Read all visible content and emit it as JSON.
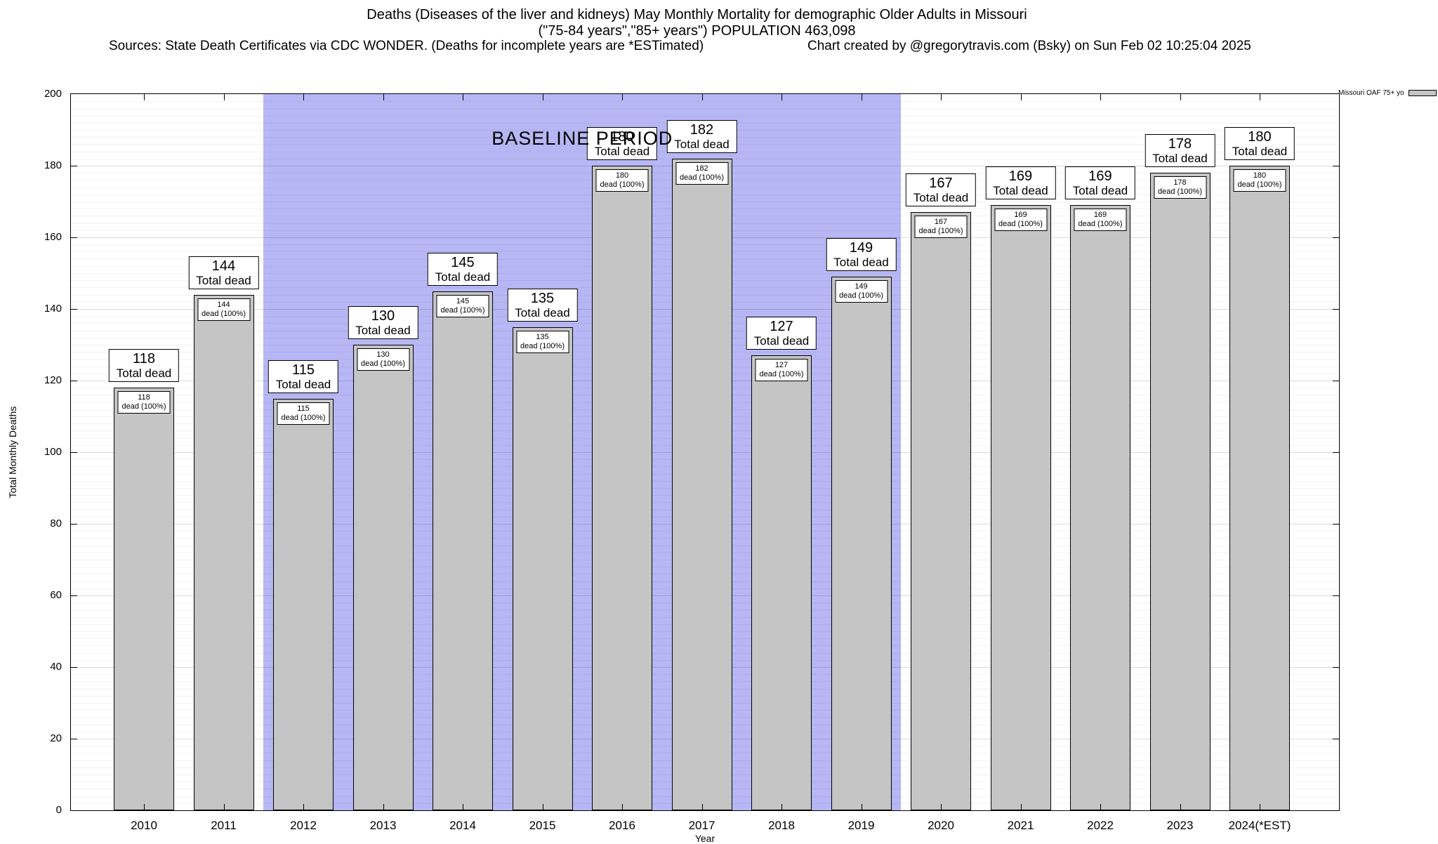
{
  "header": {
    "line1": "Deaths (Diseases of the liver and kidneys) May Monthly Mortality for demographic Older Adults in Missouri",
    "line2": "(\"75-84 years\",\"85+ years\") POPULATION 463,098",
    "sources": "Sources: State Death Certificates via CDC WONDER. (Deaths for incomplete years are *ESTimated)",
    "credit": "Chart created by @gregorytravis.com (Bsky) on Sun Feb 02 10:25:04 2025"
  },
  "legend": {
    "label": "Missouri OAF 75+ yo"
  },
  "chart_data": {
    "type": "bar",
    "title": "Deaths (Diseases of the liver and kidneys) May Monthly Mortality for demographic Older Adults in Missouri",
    "xlabel": "Year",
    "ylabel": "Total Monthly Deaths",
    "ylim": [
      0,
      200
    ],
    "yticks": [
      0,
      20,
      40,
      60,
      80,
      100,
      120,
      140,
      160,
      180,
      200
    ],
    "grid": true,
    "legend_position": "top-right",
    "legend_label": "Missouri OAF 75+ yo",
    "categories": [
      "2010",
      "2011",
      "2012",
      "2013",
      "2014",
      "2015",
      "2016",
      "2017",
      "2018",
      "2019",
      "2020",
      "2021",
      "2022",
      "2023",
      "2024(*EST)"
    ],
    "values": [
      118,
      144,
      115,
      130,
      145,
      135,
      180,
      182,
      127,
      149,
      167,
      169,
      169,
      178,
      180
    ],
    "bar_color": "#c5c5c5",
    "bar_outer_label_suffix": "Total dead",
    "bar_inner_label_suffix": "dead (100%)",
    "baseline": {
      "label": "BASELINE PERIOD",
      "start_category": "2012",
      "end_category": "2019",
      "color": "#b7b7f5"
    }
  }
}
